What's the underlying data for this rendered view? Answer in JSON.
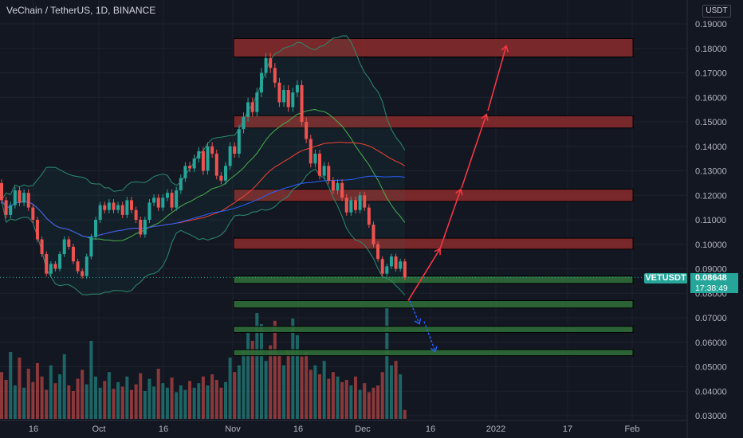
{
  "header": {
    "title": "VeChain / TetherUS, 1D, BINANCE",
    "currency": "USDT"
  },
  "price_badge": {
    "symbol": "VETUSDT",
    "last_price": "0.08648",
    "countdown": "17:38:49",
    "color": "#26a69a"
  },
  "colors": {
    "up": "#26a69a",
    "down": "#ef5350",
    "resistance_fill": "#8b2b2b",
    "support_fill": "#2f6b38",
    "arrow_up": "#f23645",
    "arrow_down": "#2962ff",
    "bb_line": "#2e8b6f",
    "ma_red": "#f44336",
    "ma_blue": "#2962ff"
  },
  "chart_data": {
    "type": "candlestick",
    "ylim": [
      0.03,
      0.19
    ],
    "y_ticks": [
      "0.19000",
      "0.18000",
      "0.17000",
      "0.16000",
      "0.15000",
      "0.14000",
      "0.13000",
      "0.12000",
      "0.11000",
      "0.10000",
      "0.09000",
      "0.08000",
      "0.07000",
      "0.06000",
      "0.05000",
      "0.04000",
      "0.03000"
    ],
    "x_ticks": [
      "16",
      "Oct",
      "16",
      "Nov",
      "16",
      "Dec",
      "16",
      "2022",
      "17",
      "Feb"
    ],
    "candles": [
      [
        0.125,
        0.118
      ],
      [
        0.118,
        0.112
      ],
      [
        0.112,
        0.116
      ],
      [
        0.116,
        0.122
      ],
      [
        0.122,
        0.117
      ],
      [
        0.117,
        0.121
      ],
      [
        0.121,
        0.115
      ],
      [
        0.115,
        0.11
      ],
      [
        0.11,
        0.102
      ],
      [
        0.102,
        0.096
      ],
      [
        0.096,
        0.088
      ],
      [
        0.088,
        0.092
      ],
      [
        0.092,
        0.09
      ],
      [
        0.09,
        0.096
      ],
      [
        0.096,
        0.102
      ],
      [
        0.102,
        0.099
      ],
      [
        0.099,
        0.093
      ],
      [
        0.093,
        0.089
      ],
      [
        0.089,
        0.087
      ],
      [
        0.087,
        0.095
      ],
      [
        0.095,
        0.103
      ],
      [
        0.103,
        0.11
      ],
      [
        0.11,
        0.116
      ],
      [
        0.116,
        0.114
      ],
      [
        0.114,
        0.117
      ],
      [
        0.117,
        0.114
      ],
      [
        0.114,
        0.116
      ],
      [
        0.116,
        0.112
      ],
      [
        0.112,
        0.118
      ],
      [
        0.118,
        0.114
      ],
      [
        0.114,
        0.11
      ],
      [
        0.11,
        0.104
      ],
      [
        0.104,
        0.11
      ],
      [
        0.11,
        0.117
      ],
      [
        0.117,
        0.119
      ],
      [
        0.119,
        0.115
      ],
      [
        0.115,
        0.119
      ],
      [
        0.119,
        0.121
      ],
      [
        0.121,
        0.115
      ],
      [
        0.115,
        0.122
      ],
      [
        0.122,
        0.127
      ],
      [
        0.127,
        0.132
      ],
      [
        0.132,
        0.131
      ],
      [
        0.131,
        0.135
      ],
      [
        0.135,
        0.138
      ],
      [
        0.138,
        0.13
      ],
      [
        0.13,
        0.14
      ],
      [
        0.14,
        0.137
      ],
      [
        0.137,
        0.128
      ],
      [
        0.128,
        0.126
      ],
      [
        0.126,
        0.132
      ],
      [
        0.132,
        0.14
      ],
      [
        0.14,
        0.137
      ],
      [
        0.137,
        0.147
      ],
      [
        0.147,
        0.152
      ],
      [
        0.152,
        0.158
      ],
      [
        0.158,
        0.154
      ],
      [
        0.154,
        0.162
      ],
      [
        0.162,
        0.17
      ],
      [
        0.17,
        0.176
      ],
      [
        0.176,
        0.172
      ],
      [
        0.172,
        0.166
      ],
      [
        0.166,
        0.158
      ],
      [
        0.158,
        0.163
      ],
      [
        0.163,
        0.156
      ],
      [
        0.156,
        0.162
      ],
      [
        0.162,
        0.165
      ],
      [
        0.165,
        0.15
      ],
      [
        0.15,
        0.143
      ],
      [
        0.143,
        0.133
      ],
      [
        0.133,
        0.137
      ],
      [
        0.137,
        0.128
      ],
      [
        0.128,
        0.132
      ],
      [
        0.132,
        0.126
      ],
      [
        0.126,
        0.122
      ],
      [
        0.122,
        0.125
      ],
      [
        0.125,
        0.119
      ],
      [
        0.119,
        0.113
      ],
      [
        0.113,
        0.118
      ],
      [
        0.118,
        0.114
      ],
      [
        0.114,
        0.12
      ],
      [
        0.12,
        0.115
      ],
      [
        0.115,
        0.108
      ],
      [
        0.108,
        0.1
      ],
      [
        0.1,
        0.094
      ],
      [
        0.094,
        0.088
      ],
      [
        0.088,
        0.091
      ],
      [
        0.091,
        0.095
      ],
      [
        0.095,
        0.09
      ],
      [
        0.09,
        0.093
      ],
      [
        0.093,
        0.0865
      ]
    ],
    "volumes": [
      0.42,
      0.35,
      0.6,
      0.3,
      0.55,
      0.28,
      0.45,
      0.33,
      0.5,
      0.38,
      0.26,
      0.48,
      0.32,
      0.4,
      0.58,
      0.3,
      0.25,
      0.36,
      0.44,
      0.31,
      0.7,
      0.38,
      0.28,
      0.34,
      0.42,
      0.27,
      0.33,
      0.29,
      0.38,
      0.26,
      0.31,
      0.41,
      0.25,
      0.36,
      0.29,
      0.45,
      0.32,
      0.28,
      0.37,
      0.24,
      0.3,
      0.26,
      0.34,
      0.28,
      0.32,
      0.38,
      0.3,
      0.4,
      0.35,
      0.28,
      0.33,
      0.55,
      0.42,
      0.48,
      0.62,
      0.78,
      0.7,
      0.95,
      0.85,
      0.52,
      0.66,
      0.88,
      0.58,
      0.48,
      0.62,
      0.9,
      0.75,
      0.56,
      0.6,
      0.44,
      0.48,
      0.4,
      0.52,
      0.36,
      0.42,
      0.38,
      0.33,
      0.35,
      0.3,
      0.38,
      0.26,
      0.32,
      0.24,
      0.28,
      0.3,
      0.42,
      1.0,
      0.48,
      0.52,
      0.4,
      0.08
    ],
    "resistance_zones": [
      [
        0.1765,
        0.184
      ],
      [
        0.1475,
        0.1525
      ],
      [
        0.1175,
        0.1225
      ],
      [
        0.098,
        0.1025
      ]
    ],
    "support_zones": [
      [
        0.084,
        0.087
      ],
      [
        0.074,
        0.077
      ],
      [
        0.064,
        0.0665
      ],
      [
        0.0545,
        0.057
      ]
    ],
    "projection_up": [
      [
        0.077,
        0.0982
      ],
      [
        0.0982,
        0.1225
      ],
      [
        0.123,
        0.153
      ],
      [
        0.1545,
        0.181
      ]
    ],
    "projection_down": [
      [
        0.077,
        0.0675
      ],
      [
        0.0685,
        0.0562
      ]
    ]
  }
}
